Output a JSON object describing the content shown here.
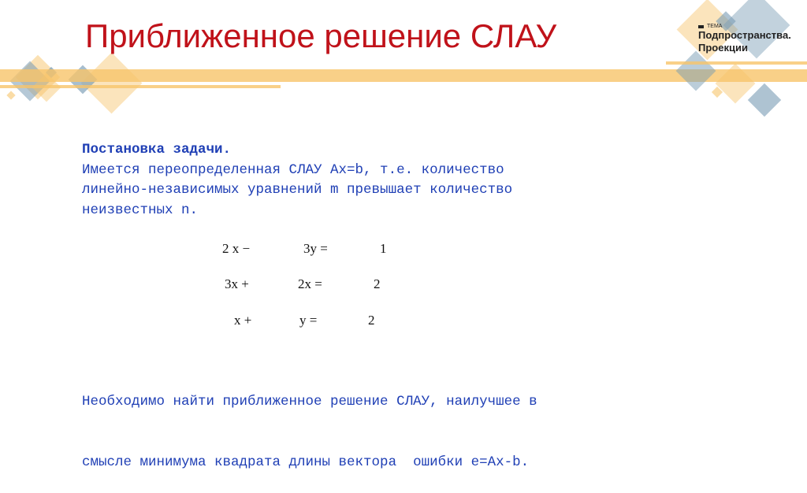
{
  "title": "Приближенное решение СЛАУ",
  "badge": {
    "label": "ТЕМА",
    "topic_line1": "Подпространства.",
    "topic_line2": "Проекции"
  },
  "body": {
    "heading": "Постановка задачи.",
    "lines": [
      "Имеется переопределенная СЛАУ Ax=b, т.е. количество",
      "линейно-независимых уравнений m превышает количество",
      "неизвестных n."
    ],
    "conclusion": [
      "Необходимо найти приближенное решение СЛАУ, наилучшее в",
      "смысле минимума квадрата длины вектора  ошибки e=Ax-b."
    ]
  },
  "equations": [
    {
      "a": "2 x −",
      "b": "3y =",
      "c": "1"
    },
    {
      "a": "3x +",
      "b": "2x =",
      "c": "2"
    },
    {
      "a": "x +",
      "b": "y =",
      "c": "2"
    }
  ],
  "colors": {
    "title": "#c0121a",
    "text": "#1f3fb5",
    "stripe": "#f7c46a",
    "diamond_blue": "#8aa8bd"
  }
}
